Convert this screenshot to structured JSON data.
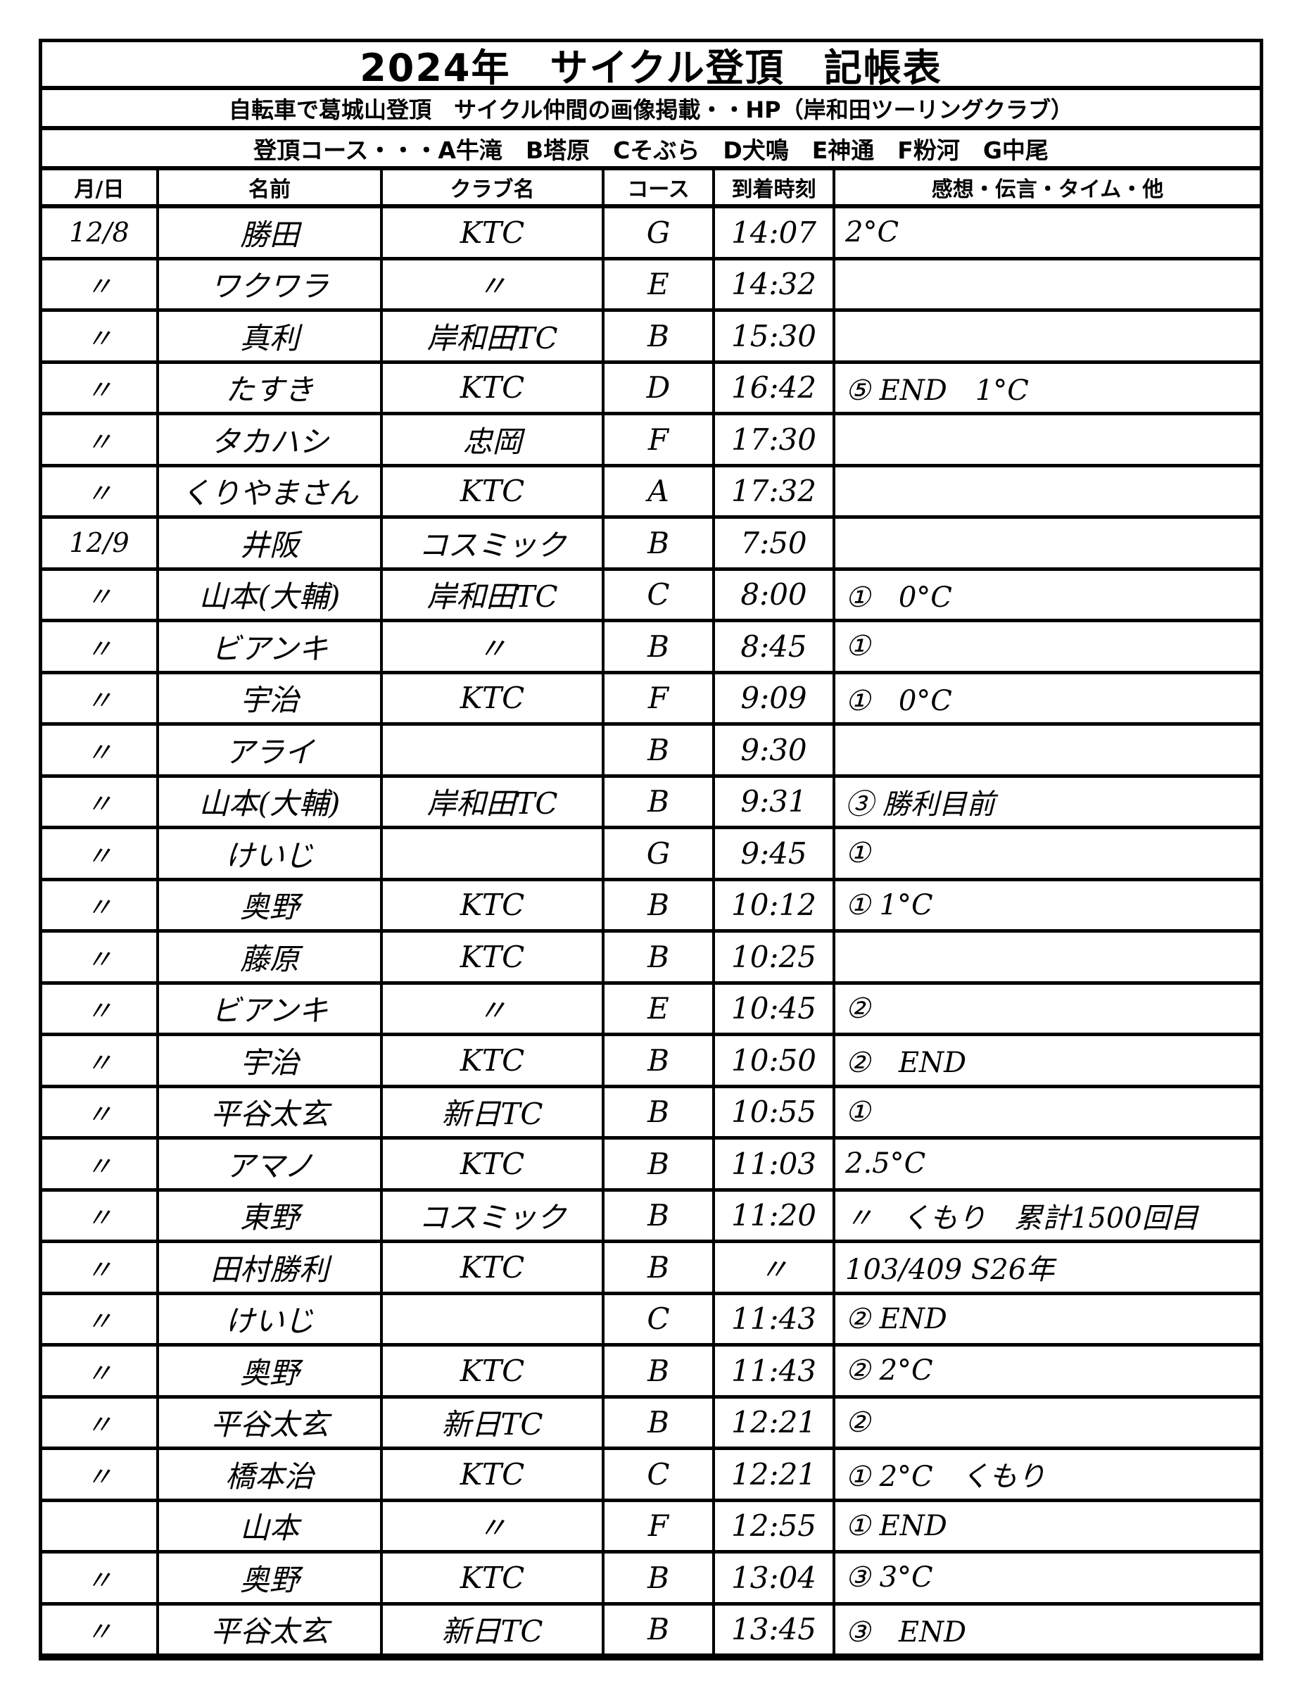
{
  "title": "2024年　サイクル登頂　記帳表",
  "subtitle": "自転車で葛城山登頂　サイクル仲間の画像掲載・・HP（岸和田ツーリングクラブ）",
  "courses": "登頂コース・・・A牛滝　B塔原　Cそぶら　D犬鳴　E神通　F粉河　G中尾",
  "columns": [
    "月/日",
    "名前",
    "クラブ名",
    "コース",
    "到着時刻",
    "感想・伝言・タイム・他"
  ],
  "rows": [
    [
      "12/8",
      "勝田",
      "KTC",
      "G",
      "14:07",
      "2°C"
    ],
    [
      "〃",
      "ワクワラ",
      "〃",
      "E",
      "14:32",
      ""
    ],
    [
      "〃",
      "真利",
      "岸和田TC",
      "B",
      "15:30",
      ""
    ],
    [
      "〃",
      "たすき",
      "KTC",
      "D",
      "16:42",
      "⑤ END　1°C"
    ],
    [
      "〃",
      "タカハシ",
      "忠岡",
      "F",
      "17:30",
      ""
    ],
    [
      "〃",
      "くりやまさん",
      "KTC",
      "A",
      "17:32",
      ""
    ],
    [
      "12/9",
      "井阪",
      "コスミック",
      "B",
      "7:50",
      ""
    ],
    [
      "〃",
      "山本(大輔)",
      "岸和田TC",
      "C",
      "8:00",
      "①　0°C"
    ],
    [
      "〃",
      "ビアンキ",
      "〃",
      "B",
      "8:45",
      "①"
    ],
    [
      "〃",
      "宇治",
      "KTC",
      "F",
      "9:09",
      "①　0°C"
    ],
    [
      "〃",
      "アライ",
      "",
      "B",
      "9:30",
      ""
    ],
    [
      "〃",
      "山本(大輔)",
      "岸和田TC",
      "B",
      "9:31",
      "③ 勝利目前"
    ],
    [
      "〃",
      "けいじ",
      "",
      "G",
      "9:45",
      "①"
    ],
    [
      "〃",
      "奥野",
      "KTC",
      "B",
      "10:12",
      "① 1°C"
    ],
    [
      "〃",
      "藤原",
      "KTC",
      "B",
      "10:25",
      ""
    ],
    [
      "〃",
      "ビアンキ",
      "〃",
      "E",
      "10:45",
      "②"
    ],
    [
      "〃",
      "宇治",
      "KTC",
      "B",
      "10:50",
      "②　END"
    ],
    [
      "〃",
      "平谷太玄",
      "新日TC",
      "B",
      "10:55",
      "①"
    ],
    [
      "〃",
      "アマノ",
      "KTC",
      "B",
      "11:03",
      "2.5°C"
    ],
    [
      "〃",
      "東野",
      "コスミック",
      "B",
      "11:20",
      "〃　くもり　累計1500回目"
    ],
    [
      "〃",
      "田村勝利",
      "KTC",
      "B",
      "〃",
      "103/409 S26年"
    ],
    [
      "〃",
      "けいじ",
      "",
      "C",
      "11:43",
      "② END"
    ],
    [
      "〃",
      "奥野",
      "KTC",
      "B",
      "11:43",
      "② 2°C"
    ],
    [
      "〃",
      "平谷太玄",
      "新日TC",
      "B",
      "12:21",
      "②"
    ],
    [
      "〃",
      "橋本治",
      "KTC",
      "C",
      "12:21",
      "① 2°C　くもり"
    ],
    [
      "",
      "山本",
      "〃",
      "F",
      "12:55",
      "① END"
    ],
    [
      "〃",
      "奥野",
      "KTC",
      "B",
      "13:04",
      "③ 3°C"
    ],
    [
      "〃",
      "平谷太玄",
      "新日TC",
      "B",
      "13:45",
      "③　END"
    ]
  ]
}
